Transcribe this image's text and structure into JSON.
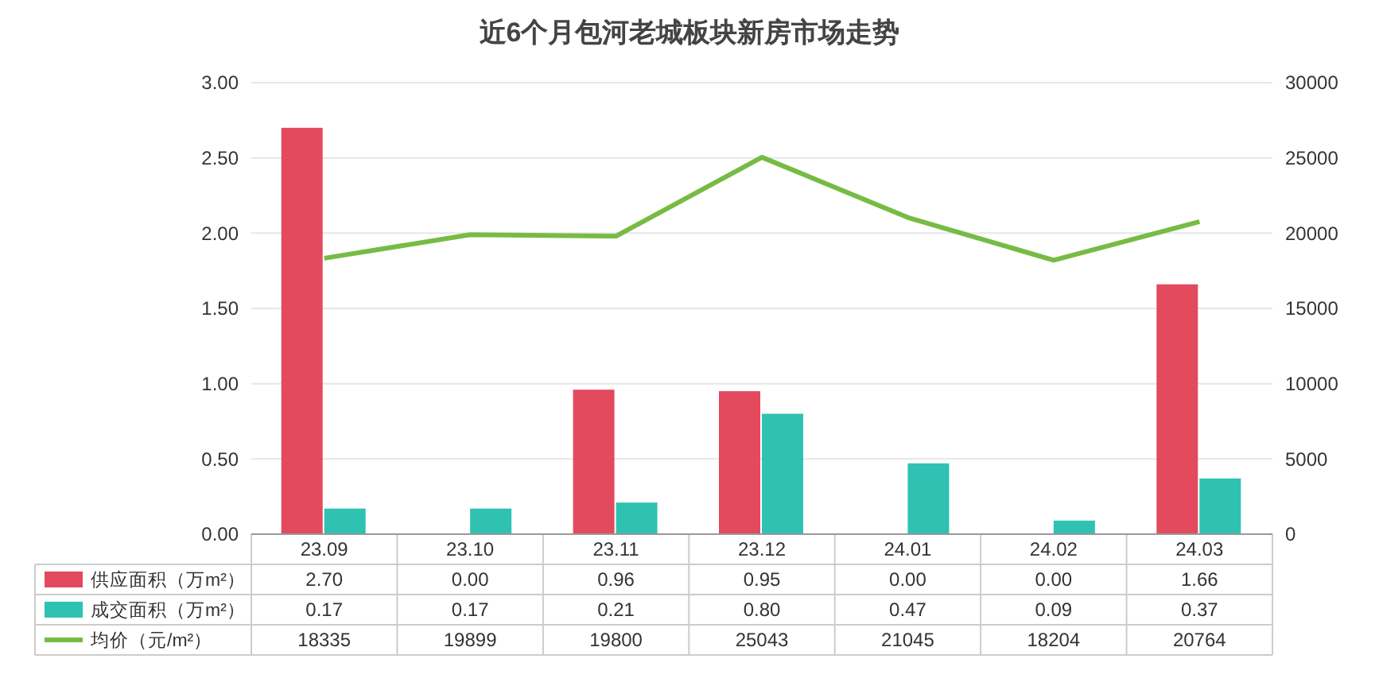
{
  "chart_data": {
    "type": "bar",
    "title": "近6个月包河老城板块新房市场走势",
    "categories": [
      "23.09",
      "23.10",
      "23.11",
      "23.12",
      "24.01",
      "24.02",
      "24.03"
    ],
    "series": [
      {
        "name": "供应面积（万m²）",
        "color": "#e34a5e",
        "values": [
          2.7,
          0,
          0.96,
          0.95,
          0,
          0,
          1.66
        ],
        "value_labels": [
          "2.70",
          "0.00",
          "0.96",
          "0.95",
          "0.00",
          "0.00",
          "1.66"
        ]
      },
      {
        "name": "成交面积（万m²）",
        "color": "#2fc2b3",
        "values": [
          0.17,
          0.17,
          0.21,
          0.8,
          0.47,
          0.09,
          0.37
        ],
        "value_labels": [
          "0.17",
          "0.17",
          "0.21",
          "0.80",
          "0.47",
          "0.09",
          "0.37"
        ]
      },
      {
        "name": "均价（元/m²）",
        "type": "line",
        "axis": "y2",
        "color": "#77bb44",
        "values": [
          18335,
          19899,
          19800,
          25043,
          21045,
          18204,
          20764
        ],
        "value_labels": [
          "18335",
          "19899",
          "19800",
          "25043",
          "21045",
          "18204",
          "20764"
        ]
      }
    ],
    "ylim": [
      0,
      3
    ],
    "yticks": [
      {
        "value": 0,
        "label": "0.00"
      },
      {
        "value": 0.5,
        "label": "0.50"
      },
      {
        "value": 1,
        "label": "1.00"
      },
      {
        "value": 1.5,
        "label": "1.50"
      },
      {
        "value": 2,
        "label": "2.00"
      },
      {
        "value": 2.5,
        "label": "2.50"
      },
      {
        "value": 3,
        "label": "3.00"
      }
    ],
    "y2lim": [
      0,
      30000
    ],
    "y2ticks": [
      0,
      5000,
      10000,
      15000,
      20000,
      25000,
      30000
    ],
    "grid": "y",
    "legend": "bottom",
    "line_style": "solid",
    "marker": "none"
  }
}
